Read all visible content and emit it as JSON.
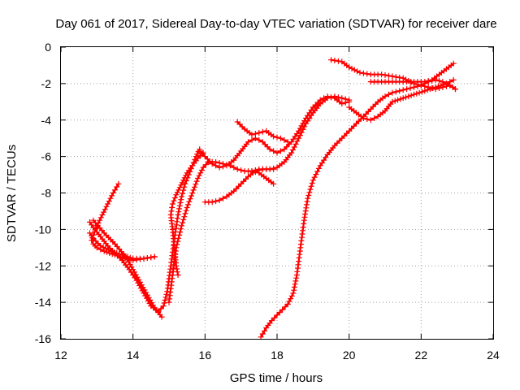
{
  "chart_data": {
    "type": "line",
    "title": "Day 061 of 2017, Sidereal Day-to-day VTEC variation (SDTVAR) for receiver dare",
    "xlabel": "GPS time / hours",
    "ylabel": "SDTVAR / TECUs",
    "xlim": [
      12,
      24
    ],
    "ylim": [
      -16,
      0
    ],
    "xticks": [
      12,
      14,
      16,
      18,
      20,
      22,
      24
    ],
    "yticks": [
      0,
      -2,
      -4,
      -6,
      -8,
      -10,
      -12,
      -14,
      -16
    ],
    "grid": true,
    "marker": "plus",
    "color": "#ff0000",
    "series": [
      {
        "x": [
          13.6,
          13.45,
          13.3,
          13.15,
          13.0,
          12.9,
          12.85,
          12.9,
          13.0,
          13.2,
          13.5,
          13.8,
          14.0,
          14.3,
          14.6
        ],
        "y": [
          -7.5,
          -8.0,
          -8.6,
          -9.2,
          -9.8,
          -10.3,
          -10.6,
          -10.8,
          -11.0,
          -11.2,
          -11.4,
          -11.6,
          -11.7,
          -11.6,
          -11.5
        ]
      },
      {
        "x": [
          12.8,
          12.9,
          13.1,
          13.3,
          13.5,
          13.7,
          13.9,
          14.1,
          14.3,
          14.5,
          14.7,
          14.85,
          14.95,
          15.05,
          15.15,
          15.25,
          15.35,
          15.45,
          15.55,
          15.65,
          15.75,
          15.85
        ],
        "y": [
          -9.6,
          -9.9,
          -10.4,
          -10.9,
          -11.3,
          -11.7,
          -12.2,
          -12.8,
          -13.5,
          -14.2,
          -14.5,
          -14.2,
          -13.4,
          -12.0,
          -10.5,
          -9.2,
          -8.2,
          -7.5,
          -7.0,
          -6.5,
          -6.0,
          -5.6
        ]
      },
      {
        "x": [
          12.8,
          12.9,
          13.1,
          13.4,
          13.7,
          14.0,
          14.3,
          14.6
        ],
        "y": [
          -10.2,
          -10.5,
          -10.9,
          -11.2,
          -11.4,
          -11.6,
          -11.6,
          -11.5
        ]
      },
      {
        "x": [
          12.9,
          13.2,
          13.5,
          13.8,
          14.0,
          14.2,
          14.4,
          14.6,
          14.8
        ],
        "y": [
          -9.5,
          -10.2,
          -10.8,
          -11.5,
          -12.2,
          -12.9,
          -13.6,
          -14.3,
          -14.8
        ]
      },
      {
        "x": [
          15.25,
          15.2,
          15.15,
          15.1,
          15.05,
          15.1,
          15.2,
          15.3,
          15.4,
          15.5,
          15.65,
          15.8,
          15.95
        ],
        "y": [
          -12.5,
          -12.0,
          -11.0,
          -10.0,
          -9.2,
          -8.6,
          -8.1,
          -7.7,
          -7.3,
          -6.9,
          -6.5,
          -6.1,
          -5.8
        ]
      },
      {
        "x": [
          15.0,
          15.1,
          15.2,
          15.35,
          15.5,
          15.65,
          15.8,
          15.95,
          16.1,
          16.3,
          16.5,
          16.7,
          16.9,
          17.1,
          17.3,
          17.5,
          17.7,
          17.9
        ],
        "y": [
          -14.0,
          -12.5,
          -11.0,
          -9.8,
          -8.8,
          -8.0,
          -7.2,
          -6.6,
          -6.3,
          -6.3,
          -6.4,
          -6.5,
          -6.7,
          -6.8,
          -6.8,
          -6.7,
          -6.7,
          -6.7
        ]
      },
      {
        "x": [
          15.85,
          16.0,
          16.2,
          16.4,
          16.6,
          16.8,
          17.0,
          17.2,
          17.4,
          17.6,
          17.8,
          18.0,
          18.2,
          18.4,
          18.6,
          18.8,
          19.0,
          19.2,
          19.4,
          19.6,
          19.8,
          20.0
        ],
        "y": [
          -5.7,
          -6.0,
          -6.4,
          -6.6,
          -6.5,
          -6.2,
          -5.7,
          -5.2,
          -5.0,
          -5.2,
          -5.6,
          -5.8,
          -5.6,
          -5.2,
          -4.6,
          -3.9,
          -3.3,
          -2.9,
          -2.7,
          -2.8,
          -3.1,
          -3.0
        ]
      },
      {
        "x": [
          16.0,
          16.2,
          16.4,
          16.6,
          16.8,
          17.0,
          17.2,
          17.4,
          17.6,
          17.8,
          18.0,
          18.2,
          18.4,
          18.6,
          18.8,
          19.0,
          19.2,
          19.4,
          19.6,
          19.8,
          20.0
        ],
        "y": [
          -8.5,
          -8.5,
          -8.4,
          -8.2,
          -7.9,
          -7.5,
          -7.1,
          -6.8,
          -6.7,
          -6.7,
          -6.6,
          -6.3,
          -5.8,
          -5.0,
          -4.2,
          -3.6,
          -3.1,
          -2.8,
          -2.7,
          -2.8,
          -2.9
        ]
      },
      {
        "x": [
          16.9,
          17.1,
          17.3,
          17.5,
          17.7,
          17.9,
          18.1,
          18.3
        ],
        "y": [
          -4.1,
          -4.5,
          -4.8,
          -4.7,
          -4.6,
          -4.9,
          -5.0,
          -5.2
        ]
      },
      {
        "x": [
          17.3,
          17.5,
          17.7,
          17.9
        ],
        "y": [
          -6.8,
          -6.9,
          -7.2,
          -7.5
        ]
      },
      {
        "x": [
          17.55,
          17.7,
          17.85,
          18.0,
          18.15,
          18.3,
          18.45,
          18.55,
          18.65,
          18.75,
          18.85,
          19.0,
          19.2,
          19.4,
          19.6,
          19.8,
          20.0,
          20.2,
          20.4,
          20.6,
          20.8,
          21.0,
          21.2,
          21.4,
          21.6,
          21.8,
          22.0,
          22.2,
          22.4,
          22.6,
          22.8,
          22.95
        ],
        "y": [
          -15.9,
          -15.4,
          -15.0,
          -14.7,
          -14.4,
          -14.1,
          -13.5,
          -12.5,
          -11.0,
          -9.5,
          -8.3,
          -7.3,
          -6.5,
          -5.9,
          -5.4,
          -5.0,
          -4.6,
          -4.2,
          -3.8,
          -3.4,
          -3.0,
          -2.7,
          -2.5,
          -2.4,
          -2.3,
          -2.2,
          -2.1,
          -2.2,
          -2.3,
          -2.2,
          -2.1,
          -2.3
        ]
      },
      {
        "x": [
          19.5,
          19.8,
          20.0,
          20.3,
          20.6,
          20.9,
          21.2,
          21.5,
          21.8,
          22.0,
          22.2,
          22.4,
          22.6,
          22.8,
          22.95
        ],
        "y": [
          -0.7,
          -0.8,
          -1.1,
          -1.4,
          -1.5,
          -1.5,
          -1.6,
          -1.7,
          -2.0,
          -2.1,
          -1.9,
          -1.8,
          -1.9,
          -2.1,
          -2.3
        ]
      },
      {
        "x": [
          20.6,
          21.0,
          21.4,
          21.8,
          22.1,
          22.3,
          22.5,
          22.7,
          22.9
        ],
        "y": [
          -1.9,
          -1.9,
          -1.9,
          -1.9,
          -1.9,
          -1.8,
          -1.5,
          -1.2,
          -0.9
        ]
      },
      {
        "x": [
          20.0,
          20.2,
          20.4,
          20.6,
          20.8,
          21.0,
          21.2,
          21.5,
          21.8,
          22.1,
          22.4,
          22.7,
          22.9
        ],
        "y": [
          -3.3,
          -3.6,
          -3.9,
          -4.0,
          -3.8,
          -3.5,
          -3.0,
          -2.8,
          -2.6,
          -2.4,
          -2.2,
          -2.0,
          -1.8
        ]
      }
    ]
  }
}
